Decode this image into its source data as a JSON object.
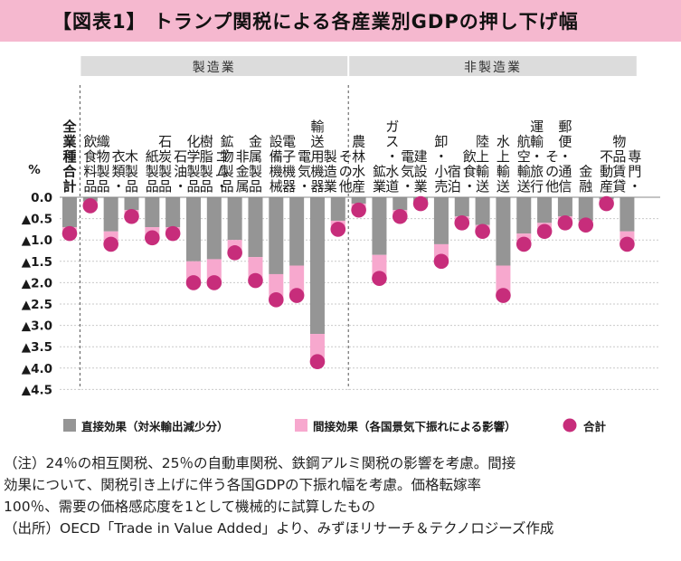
{
  "title": "【図表1】 トランプ関税による各産業別GDPの押し下げ幅",
  "chart_data": {
    "type": "bar",
    "stacked": true,
    "ylabel": "%",
    "ylim": [
      -4.5,
      0
    ],
    "y_ticks": [
      {
        "value": 0,
        "label": "0.0"
      },
      {
        "value": -0.5,
        "label": "▲0.5"
      },
      {
        "value": -1.0,
        "label": "▲1.0"
      },
      {
        "value": -1.5,
        "label": "▲1.5"
      },
      {
        "value": -2.0,
        "label": "▲2.0"
      },
      {
        "value": -2.5,
        "label": "▲2.5"
      },
      {
        "value": -3.0,
        "label": "▲3.0"
      },
      {
        "value": -3.5,
        "label": "▲3.5"
      },
      {
        "value": -4.0,
        "label": "▲4.0"
      },
      {
        "value": -4.5,
        "label": "▲4.5"
      }
    ],
    "grid": true,
    "groups": [
      {
        "label": "製造業",
        "from": 1,
        "to": 13
      },
      {
        "label": "非製造業",
        "from": 14,
        "to": 27
      }
    ],
    "categories": [
      {
        "cols": [
          "全業種合計"
        ],
        "bold": true
      },
      {
        "cols": [
          "飲食料品"
        ]
      },
      {
        "cols": [
          "衣類・織物製品",
          "衣類・",
          "織物製品"
        ]
      },
      {
        "cols": [
          "木製品"
        ]
      },
      {
        "cols": [
          "紙製品"
        ]
      },
      {
        "cols": [
          "石油・石炭製品",
          "石油・",
          "石炭製品"
        ]
      },
      {
        "cols": [
          "化学製品"
        ]
      },
      {
        "cols": [
          "ゴム・樹脂製品",
          "ゴム・",
          "樹脂製品"
        ]
      },
      {
        "cols": [
          "非金属鉱物製品",
          "非金属",
          "鉱物製品"
        ]
      },
      {
        "cols": [
          "金属製品"
        ]
      },
      {
        "cols": [
          "設備機械"
        ]
      },
      {
        "cols": [
          "電気・電子機器",
          "電気・",
          "電子機器"
        ]
      },
      {
        "cols": [
          "輸送用機器"
        ]
      },
      {
        "cols": [
          "その他製造業",
          "その他",
          "製造業"
        ]
      },
      {
        "cols": [
          "農林水産"
        ]
      },
      {
        "cols": [
          "鉱業"
        ]
      },
      {
        "cols": [
          "電気・ガス・水道",
          "電気・",
          "ガス・水道"
        ]
      },
      {
        "cols": [
          "建設業"
        ]
      },
      {
        "cols": [
          "卸・小売"
        ]
      },
      {
        "cols": [
          "飲食・宿泊",
          "飲食・",
          "宿泊"
        ]
      },
      {
        "cols": [
          "陸上輸送"
        ]
      },
      {
        "cols": [
          "水上輸送"
        ]
      },
      {
        "cols": [
          "航空輸送"
        ]
      },
      {
        "cols": [
          "その他運輸・旅行",
          "その他",
          "運輸・旅行"
        ]
      },
      {
        "cols": [
          "郵便・通信"
        ]
      },
      {
        "cols": [
          "金融"
        ]
      },
      {
        "cols": [
          "不動産"
        ]
      },
      {
        "cols": [
          "専門・物品賃貸",
          "専門・",
          "物品賃貸"
        ]
      }
    ],
    "series": [
      {
        "name": "直接効果（対米輸出減少分）",
        "color": "#959595",
        "values": [
          -0.7,
          -0.1,
          -0.8,
          -0.3,
          -0.7,
          -0.7,
          -1.5,
          -1.45,
          -1.0,
          -1.4,
          -1.8,
          -1.6,
          -3.2,
          -0.55,
          -0.15,
          -1.35,
          -0.3,
          -0.1,
          -1.1,
          -0.45,
          -0.65,
          -1.6,
          -0.85,
          -0.6,
          -0.45,
          -0.55,
          -0.05,
          -0.8
        ]
      },
      {
        "name": "間接効果（各国景気下振れによる影響）",
        "color": "#f7a8ce",
        "values": [
          -0.15,
          -0.1,
          -0.3,
          -0.15,
          -0.25,
          -0.15,
          -0.5,
          -0.55,
          -0.3,
          -0.55,
          -0.6,
          -0.7,
          -0.65,
          -0.2,
          -0.15,
          -0.55,
          -0.15,
          -0.05,
          -0.4,
          -0.15,
          -0.15,
          -0.7,
          -0.25,
          -0.2,
          -0.15,
          -0.1,
          -0.1,
          -0.3
        ]
      }
    ],
    "totals": {
      "name": "合計",
      "color": "#c72d7b",
      "values": [
        -0.85,
        -0.2,
        -1.1,
        -0.45,
        -0.95,
        -0.85,
        -2.0,
        -2.0,
        -1.3,
        -1.95,
        -2.4,
        -2.3,
        -3.85,
        -0.75,
        -0.3,
        -1.9,
        -0.45,
        -0.15,
        -1.5,
        -0.6,
        -0.8,
        -2.3,
        -1.1,
        -0.8,
        -0.6,
        -0.65,
        -0.15,
        -1.1
      ]
    }
  },
  "notes": [
    "（注）24％の相互関税、25％の自動車関税、鉄鋼アルミ関税の影響を考慮。間接",
    "効果について、関税引き上げに伴う各国GDPの下振れ幅を考慮。価格転嫁率",
    "100％、需要の価格感応度を1として機械的に試算したもの",
    "（出所）OECD「Trade in Value Added」より、みずほリサーチ＆テクノロジーズ作成"
  ],
  "colors": {
    "title_bg": "#f5b8cf",
    "group_bg": "#dcdcdc",
    "direct": "#959595",
    "indirect": "#f7a8ce",
    "total": "#c72d7b"
  }
}
